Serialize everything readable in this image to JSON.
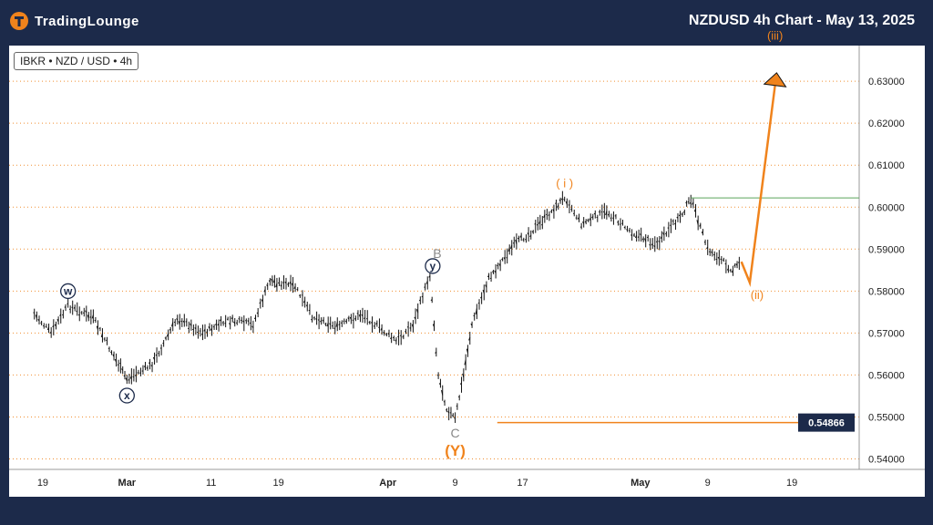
{
  "header": {
    "logo_text": "TradingLounge",
    "title": "NZDUSD 4h Chart - May 13, 2025"
  },
  "ticker_label": "IBKR • NZD / USD • 4h",
  "colors": {
    "background": "#1c2a4a",
    "accent": "#f0831c",
    "wave_label": "#1c2a4a",
    "bar": "#111111",
    "resistance": "#5aa55a"
  },
  "chart_data": {
    "type": "ohlc",
    "y_ticks": [
      "0.63000",
      "0.62000",
      "0.61000",
      "0.60000",
      "0.59000",
      "0.58000",
      "0.57000",
      "0.56000",
      "0.55000",
      "0.54000"
    ],
    "ylim": [
      0.5375,
      0.6385
    ],
    "x_ticks": [
      {
        "label": "19",
        "date": "2025-02-19"
      },
      {
        "label": "Mar",
        "date": "2025-03-01"
      },
      {
        "label": "11",
        "date": "2025-03-11"
      },
      {
        "label": "19",
        "date": "2025-03-19"
      },
      {
        "label": "Apr",
        "date": "2025-04-01"
      },
      {
        "label": "9",
        "date": "2025-04-09"
      },
      {
        "label": "17",
        "date": "2025-04-17"
      },
      {
        "label": "May",
        "date": "2025-05-01"
      },
      {
        "label": "9",
        "date": "2025-05-09"
      },
      {
        "label": "19",
        "date": "2025-05-19"
      }
    ],
    "price_path": [
      [
        "2025-02-18",
        0.5745
      ],
      [
        "2025-02-20",
        0.57
      ],
      [
        "2025-02-22",
        0.5765
      ],
      [
        "2025-02-25",
        0.5735
      ],
      [
        "2025-02-28",
        0.5625
      ],
      [
        "2025-03-01",
        0.559
      ],
      [
        "2025-03-04",
        0.5625
      ],
      [
        "2025-03-07",
        0.5735
      ],
      [
        "2025-03-10",
        0.57
      ],
      [
        "2025-03-13",
        0.573
      ],
      [
        "2025-03-16",
        0.572
      ],
      [
        "2025-03-18",
        0.5825
      ],
      [
        "2025-03-21",
        0.581
      ],
      [
        "2025-03-23",
        0.574
      ],
      [
        "2025-03-26",
        0.5715
      ],
      [
        "2025-03-29",
        0.5745
      ],
      [
        "2025-04-02",
        0.568
      ],
      [
        "2025-04-04",
        0.572
      ],
      [
        "2025-04-06",
        0.584
      ],
      [
        "2025-04-07",
        0.56
      ],
      [
        "2025-04-08",
        0.552
      ],
      [
        "2025-04-09",
        0.5495
      ],
      [
        "2025-04-10",
        0.56
      ],
      [
        "2025-04-11",
        0.572
      ],
      [
        "2025-04-13",
        0.583
      ],
      [
        "2025-04-16",
        0.591
      ],
      [
        "2025-04-18",
        0.594
      ],
      [
        "2025-04-21",
        0.6
      ],
      [
        "2025-04-22",
        0.6025
      ],
      [
        "2025-04-24",
        0.596
      ],
      [
        "2025-04-27",
        0.599
      ],
      [
        "2025-04-30",
        0.594
      ],
      [
        "2025-05-03",
        0.591
      ],
      [
        "2025-05-06",
        0.5985
      ],
      [
        "2025-05-07",
        0.602
      ],
      [
        "2025-05-09",
        0.59
      ],
      [
        "2025-05-12",
        0.585
      ],
      [
        "2025-05-13",
        0.587
      ]
    ],
    "projection": [
      [
        "2025-05-13",
        0.587
      ],
      [
        "2025-05-14",
        0.582
      ],
      [
        "2025-05-17",
        0.629
      ]
    ],
    "levels": {
      "support": 0.54866,
      "support_label": "0.54866",
      "resistance": 0.6022
    },
    "wave_labels": [
      {
        "text": "w",
        "date": "2025-02-22",
        "price": 0.5765,
        "style": "circle"
      },
      {
        "text": "x",
        "date": "2025-03-01",
        "price": 0.559,
        "style": "circle"
      },
      {
        "text": "B",
        "date": "2025-04-06",
        "price": 0.584,
        "style": "plain"
      },
      {
        "text": "y",
        "date": "2025-04-06",
        "price": 0.584,
        "style": "circle"
      },
      {
        "text": "C",
        "date": "2025-04-09",
        "price": 0.5495,
        "style": "plain"
      },
      {
        "text": "(Y)",
        "date": "2025-04-09",
        "price": 0.5495,
        "style": "orange-paren"
      },
      {
        "text": "( i )",
        "date": "2025-04-22",
        "price": 0.6025,
        "style": "orange-small"
      },
      {
        "text": "(ii)",
        "date": "2025-05-14",
        "price": 0.582,
        "style": "orange-small"
      },
      {
        "text": "(iii)",
        "date": "2025-05-17",
        "price": 0.629,
        "style": "orange-small"
      }
    ]
  }
}
